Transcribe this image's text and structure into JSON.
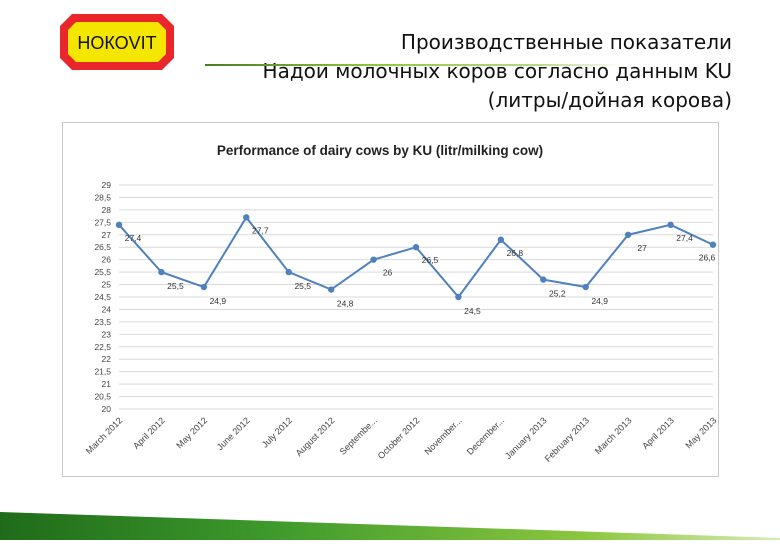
{
  "logo": {
    "text": "НОКОVIT",
    "bg_color": "#f5e600",
    "border_color": "#e8262b"
  },
  "header": {
    "lines": [
      "Производственные показатели",
      "Надои молочных коров согласно данным KU",
      "(литры/дойная корова)"
    ]
  },
  "chart_data": {
    "type": "line",
    "title": "Performance of dairy cows by KU (litr/milking cow)",
    "categories": [
      "March 2012",
      "April 2012",
      "May 2012",
      "June 2012",
      "July 2012",
      "August 2012",
      "Septembe...",
      "October 2012",
      "November...",
      "December...",
      "January 2013",
      "February 2013",
      "March 2013",
      "April 2013",
      "May 2013"
    ],
    "series": [
      {
        "values": [
          27.4,
          25.5,
          24.9,
          27.7,
          25.5,
          24.8,
          26.0,
          26.5,
          24.5,
          26.8,
          25.2,
          24.9,
          27.0,
          27.4,
          26.6
        ]
      }
    ],
    "data_labels": [
      "27,4",
      "25,5",
      "24,9",
      "27,7",
      "25,5",
      "24,8",
      "26",
      "26,5",
      "24,5",
      "26,8",
      "25,2",
      "24,9",
      "27",
      "27,4",
      "26,6"
    ],
    "y_ticks": [
      "29",
      "28,5",
      "28",
      "27,5",
      "27",
      "26,5",
      "26",
      "25,5",
      "25",
      "24,5",
      "24",
      "23,5",
      "23",
      "22,5",
      "22",
      "21,5",
      "21",
      "20,5",
      "20"
    ],
    "ylim": [
      20,
      29
    ],
    "xlabel": "",
    "ylabel": "",
    "grid": true,
    "legend": "none",
    "line_color": "#4f81bd",
    "marker_color": "#4f81bd"
  }
}
